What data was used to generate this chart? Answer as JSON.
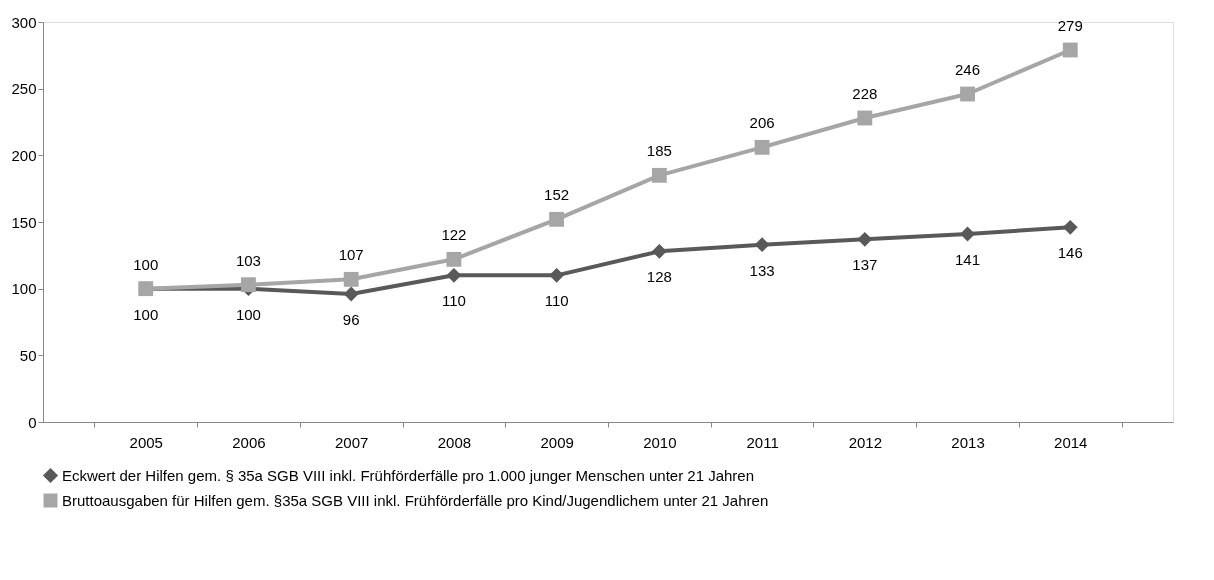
{
  "chart_data": {
    "type": "line",
    "categories": [
      "2005",
      "2006",
      "2007",
      "2008",
      "2009",
      "2010",
      "2011",
      "2012",
      "2013",
      "2014"
    ],
    "series": [
      {
        "name": "Eckwert der Hilfen gem. § 35a SGB VIII inkl. Frühförderfälle pro 1.000 junger Menschen unter 21 Jahren",
        "color": "#595959",
        "marker": "diamond",
        "values": [
          100,
          100,
          96,
          110,
          110,
          128,
          133,
          137,
          141,
          146
        ]
      },
      {
        "name": "Bruttoausgaben für Hilfen gem. §35a SGB VIII inkl. Frühförderfälle pro Kind/Jugendlichem unter 21 Jahren",
        "color": "#a6a6a6",
        "marker": "square",
        "values": [
          100,
          103,
          107,
          122,
          152,
          185,
          206,
          228,
          246,
          279
        ]
      }
    ],
    "ylim": [
      0,
      300
    ],
    "yticks": [
      0,
      50,
      100,
      150,
      200,
      250,
      300
    ],
    "grid": false,
    "legend": "bottom",
    "data_labels": true,
    "line_style": "solid"
  }
}
